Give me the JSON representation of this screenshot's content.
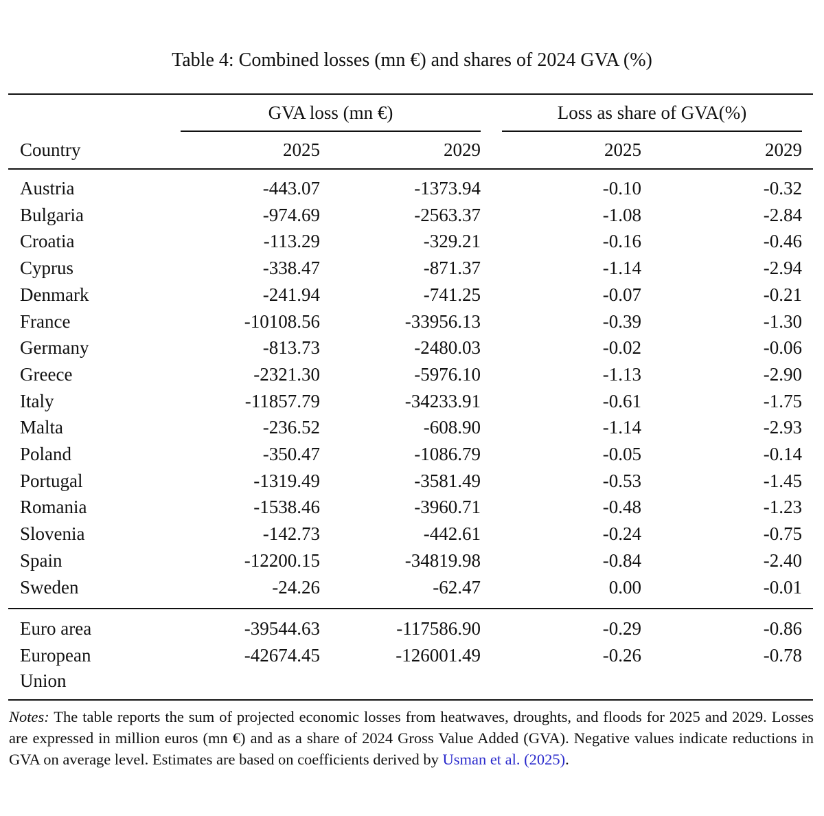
{
  "caption": "Table 4: Combined losses (mn €) and shares of 2024 GVA (%)",
  "header": {
    "group1": "GVA loss (mn €)",
    "group2": "Loss as share of GVA(%)",
    "country": "Country",
    "years": [
      "2025",
      "2029",
      "2025",
      "2029"
    ]
  },
  "rows": [
    {
      "country": "Austria",
      "values": [
        "-443.07",
        "-1373.94",
        "-0.10",
        "-0.32"
      ]
    },
    {
      "country": "Bulgaria",
      "values": [
        "-974.69",
        "-2563.37",
        "-1.08",
        "-2.84"
      ]
    },
    {
      "country": "Croatia",
      "values": [
        "-113.29",
        "-329.21",
        "-0.16",
        "-0.46"
      ]
    },
    {
      "country": "Cyprus",
      "values": [
        "-338.47",
        "-871.37",
        "-1.14",
        "-2.94"
      ]
    },
    {
      "country": "Denmark",
      "values": [
        "-241.94",
        "-741.25",
        "-0.07",
        "-0.21"
      ]
    },
    {
      "country": "France",
      "values": [
        "-10108.56",
        "-33956.13",
        "-0.39",
        "-1.30"
      ]
    },
    {
      "country": "Germany",
      "values": [
        "-813.73",
        "-2480.03",
        "-0.02",
        "-0.06"
      ]
    },
    {
      "country": "Greece",
      "values": [
        "-2321.30",
        "-5976.10",
        "-1.13",
        "-2.90"
      ]
    },
    {
      "country": "Italy",
      "values": [
        "-11857.79",
        "-34233.91",
        "-0.61",
        "-1.75"
      ]
    },
    {
      "country": "Malta",
      "values": [
        "-236.52",
        "-608.90",
        "-1.14",
        "-2.93"
      ]
    },
    {
      "country": "Poland",
      "values": [
        "-350.47",
        "-1086.79",
        "-0.05",
        "-0.14"
      ]
    },
    {
      "country": "Portugal",
      "values": [
        "-1319.49",
        "-3581.49",
        "-0.53",
        "-1.45"
      ]
    },
    {
      "country": "Romania",
      "values": [
        "-1538.46",
        "-3960.71",
        "-0.48",
        "-1.23"
      ]
    },
    {
      "country": "Slovenia",
      "values": [
        "-142.73",
        "-442.61",
        "-0.24",
        "-0.75"
      ]
    },
    {
      "country": "Spain",
      "values": [
        "-12200.15",
        "-34819.98",
        "-0.84",
        "-2.40"
      ]
    },
    {
      "country": "Sweden",
      "values": [
        "-24.26",
        "-62.47",
        "0.00",
        "-0.01"
      ]
    }
  ],
  "totals": [
    {
      "country": "Euro area",
      "values": [
        "-39544.63",
        "-117586.90",
        "-0.29",
        "-0.86"
      ]
    },
    {
      "country": "European",
      "country_line2": "Union",
      "values": [
        "-42674.45",
        "-126001.49",
        "-0.26",
        "-0.78"
      ]
    }
  ],
  "notes": {
    "label": "Notes:",
    "text": " The table reports the sum of projected economic losses from heatwaves, droughts, and floods for 2025 and 2029. Losses are expressed in million euros (mn €) and as a share of 2024 Gross Value Added (GVA). Negative values indicate reductions in GVA on average level. Estimates are based on coefficients derived by ",
    "citation": "Usman et al. (2025)",
    "end": "."
  }
}
